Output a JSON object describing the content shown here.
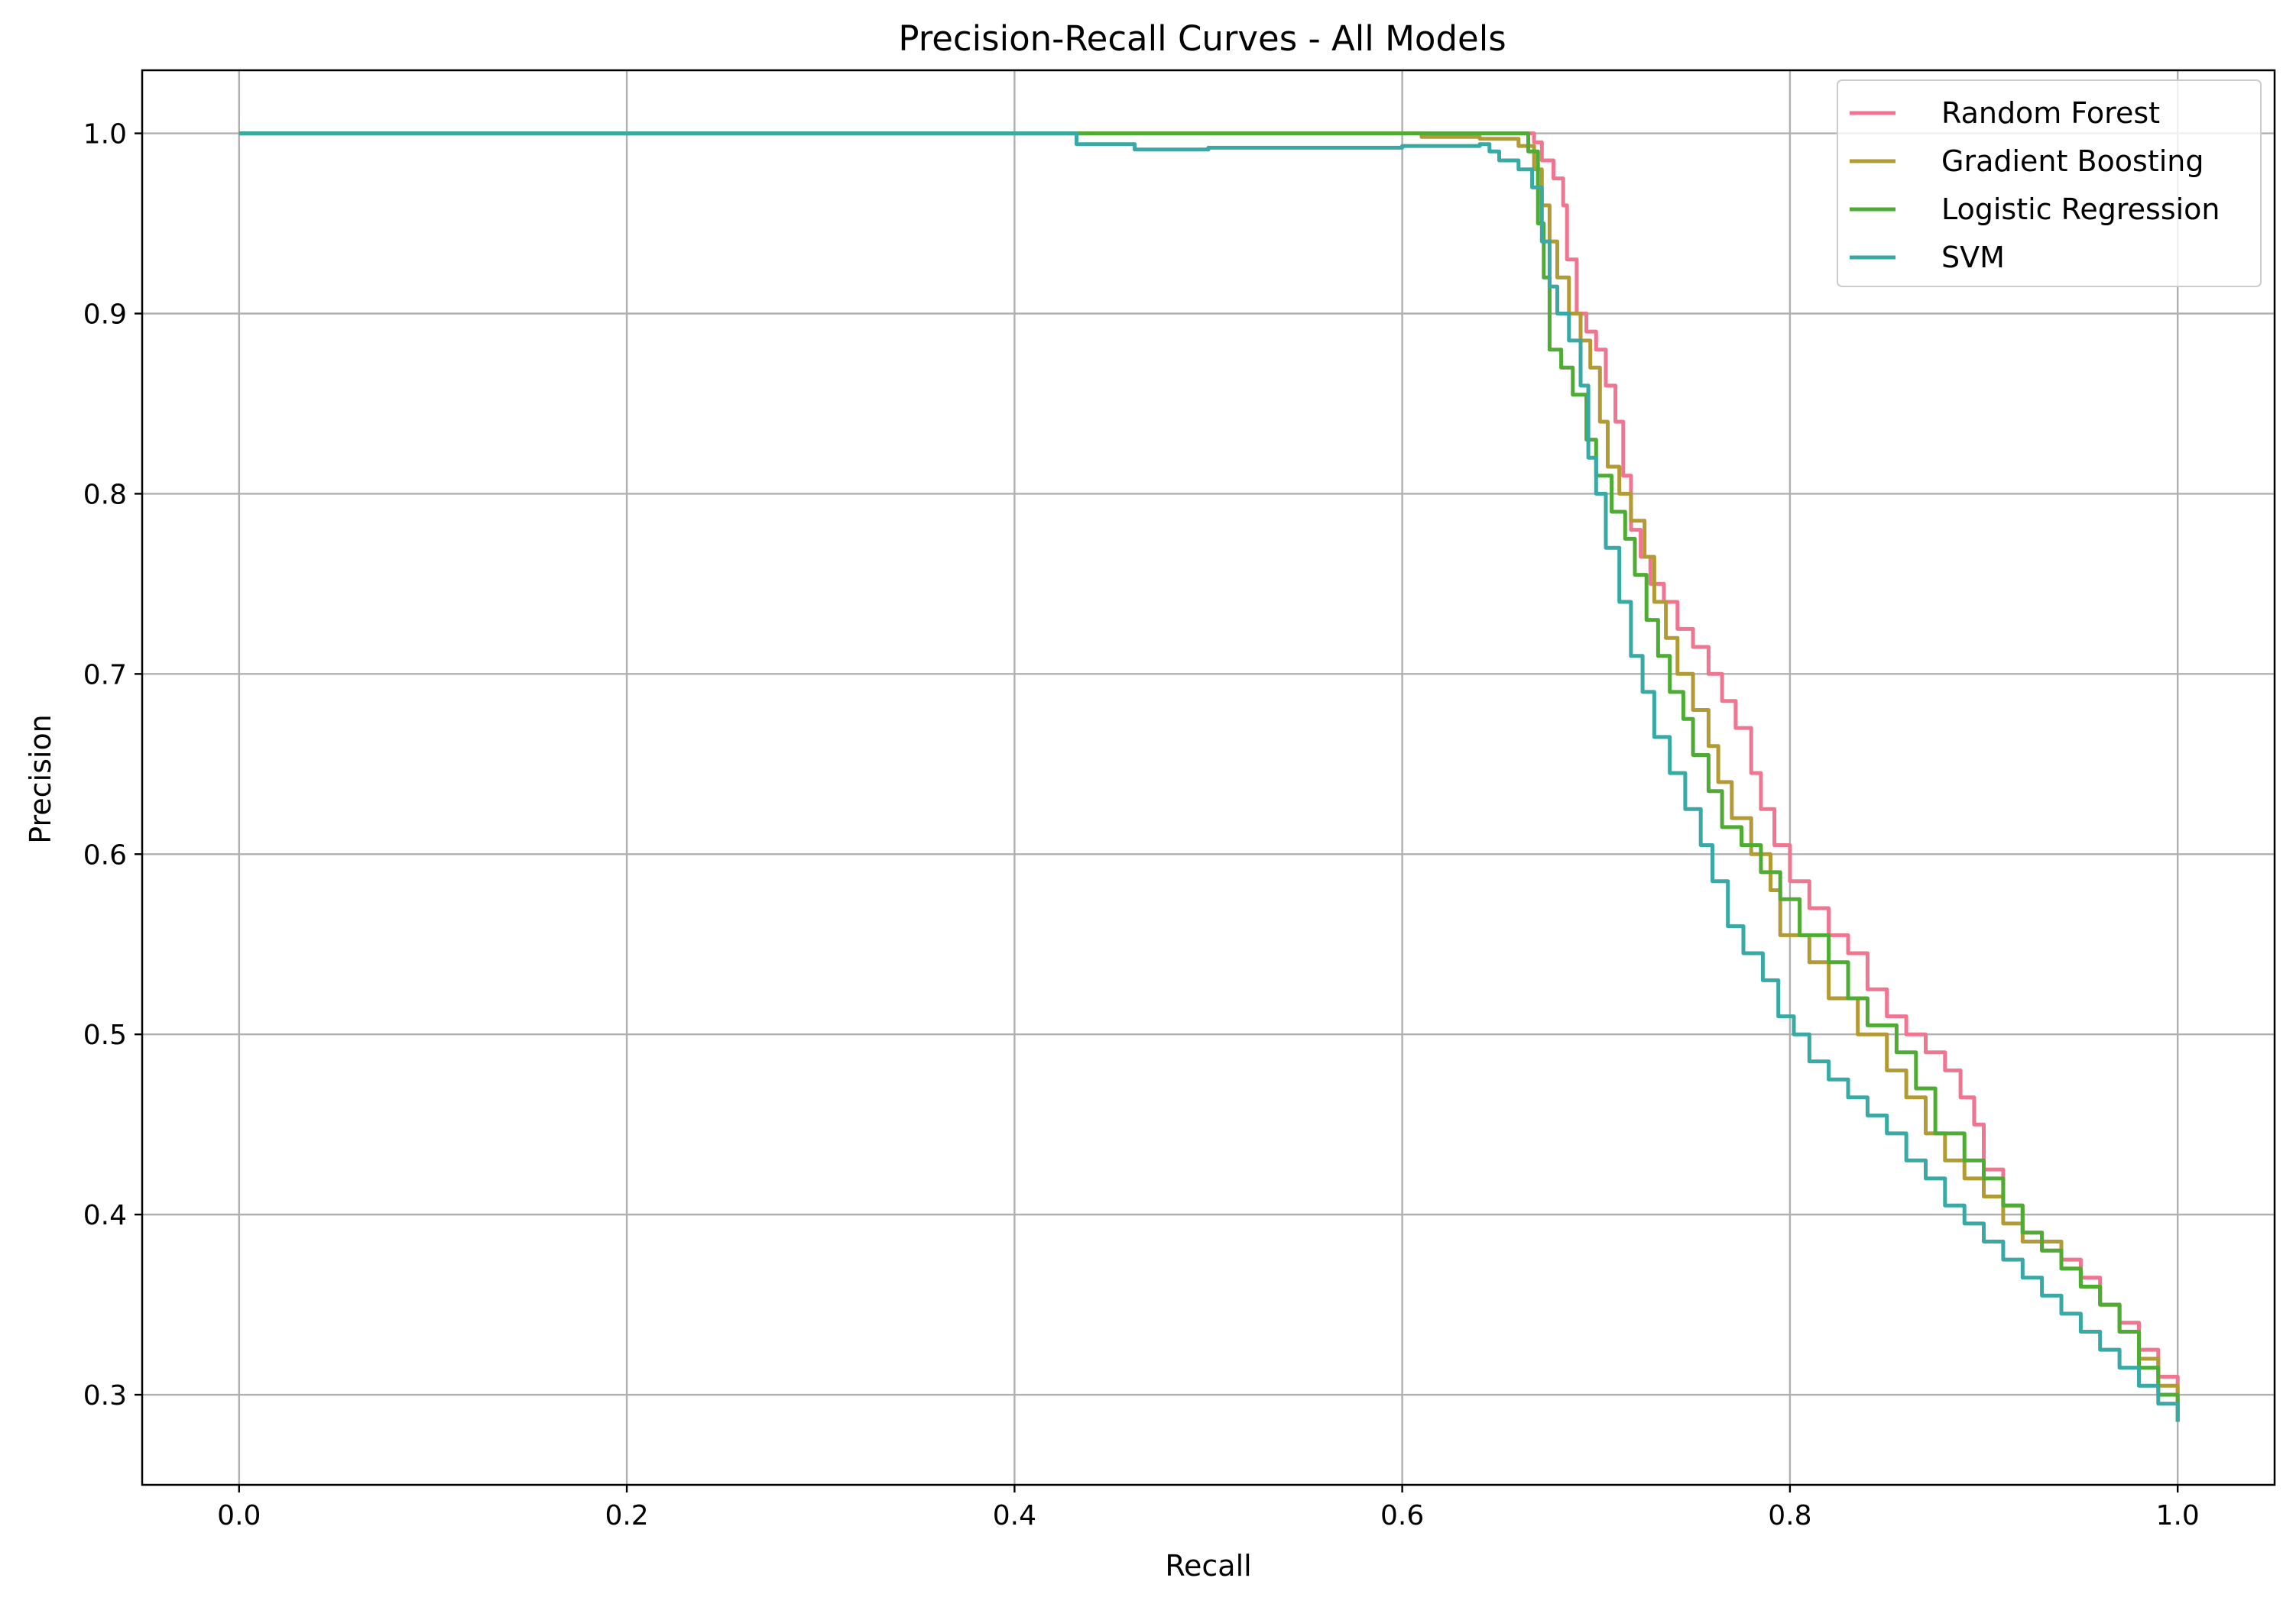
{
  "chart_data": {
    "type": "line",
    "title": "Precision-Recall Curves - All Models",
    "xlabel": "Recall",
    "ylabel": "Precision",
    "xlim": [
      -0.05,
      1.05
    ],
    "ylim": [
      0.25,
      1.035
    ],
    "xticks": [
      "0.0",
      "0.2",
      "0.4",
      "0.6",
      "0.8",
      "1.0"
    ],
    "yticks": [
      "0.3",
      "0.4",
      "0.5",
      "0.6",
      "0.7",
      "0.8",
      "0.9",
      "1.0"
    ],
    "grid": true,
    "legend_position": "top-right",
    "series": [
      {
        "name": "Random Forest",
        "color": "#f07590",
        "points": [
          [
            0.0,
            1.0
          ],
          [
            0.64,
            1.0
          ],
          [
            0.668,
            0.995
          ],
          [
            0.672,
            0.985
          ],
          [
            0.678,
            0.975
          ],
          [
            0.683,
            0.96
          ],
          [
            0.685,
            0.93
          ],
          [
            0.69,
            0.9
          ],
          [
            0.695,
            0.89
          ],
          [
            0.7,
            0.88
          ],
          [
            0.705,
            0.86
          ],
          [
            0.71,
            0.84
          ],
          [
            0.714,
            0.81
          ],
          [
            0.718,
            0.78
          ],
          [
            0.723,
            0.765
          ],
          [
            0.728,
            0.75
          ],
          [
            0.735,
            0.74
          ],
          [
            0.742,
            0.725
          ],
          [
            0.75,
            0.715
          ],
          [
            0.758,
            0.7
          ],
          [
            0.765,
            0.685
          ],
          [
            0.772,
            0.67
          ],
          [
            0.78,
            0.645
          ],
          [
            0.785,
            0.625
          ],
          [
            0.792,
            0.605
          ],
          [
            0.8,
            0.585
          ],
          [
            0.81,
            0.57
          ],
          [
            0.82,
            0.555
          ],
          [
            0.83,
            0.545
          ],
          [
            0.84,
            0.525
          ],
          [
            0.85,
            0.51
          ],
          [
            0.86,
            0.5
          ],
          [
            0.87,
            0.49
          ],
          [
            0.88,
            0.48
          ],
          [
            0.888,
            0.465
          ],
          [
            0.895,
            0.45
          ],
          [
            0.9,
            0.425
          ],
          [
            0.91,
            0.405
          ],
          [
            0.92,
            0.39
          ],
          [
            0.93,
            0.38
          ],
          [
            0.94,
            0.375
          ],
          [
            0.95,
            0.365
          ],
          [
            0.96,
            0.35
          ],
          [
            0.97,
            0.34
          ],
          [
            0.98,
            0.325
          ],
          [
            0.99,
            0.31
          ],
          [
            1.0,
            0.285
          ]
        ]
      },
      {
        "name": "Gradient Boosting",
        "color": "#b29b34",
        "points": [
          [
            0.0,
            1.0
          ],
          [
            0.61,
            0.998
          ],
          [
            0.64,
            0.997
          ],
          [
            0.66,
            0.993
          ],
          [
            0.668,
            0.98
          ],
          [
            0.672,
            0.96
          ],
          [
            0.676,
            0.94
          ],
          [
            0.68,
            0.92
          ],
          [
            0.686,
            0.9
          ],
          [
            0.692,
            0.885
          ],
          [
            0.697,
            0.87
          ],
          [
            0.702,
            0.84
          ],
          [
            0.706,
            0.815
          ],
          [
            0.712,
            0.8
          ],
          [
            0.718,
            0.785
          ],
          [
            0.725,
            0.765
          ],
          [
            0.73,
            0.74
          ],
          [
            0.736,
            0.72
          ],
          [
            0.742,
            0.7
          ],
          [
            0.75,
            0.68
          ],
          [
            0.758,
            0.66
          ],
          [
            0.763,
            0.64
          ],
          [
            0.77,
            0.62
          ],
          [
            0.78,
            0.6
          ],
          [
            0.79,
            0.58
          ],
          [
            0.795,
            0.555
          ],
          [
            0.81,
            0.54
          ],
          [
            0.82,
            0.52
          ],
          [
            0.835,
            0.5
          ],
          [
            0.85,
            0.48
          ],
          [
            0.86,
            0.465
          ],
          [
            0.87,
            0.445
          ],
          [
            0.88,
            0.43
          ],
          [
            0.89,
            0.42
          ],
          [
            0.9,
            0.41
          ],
          [
            0.91,
            0.395
          ],
          [
            0.92,
            0.385
          ],
          [
            0.94,
            0.37
          ],
          [
            0.95,
            0.36
          ],
          [
            0.96,
            0.35
          ],
          [
            0.97,
            0.335
          ],
          [
            0.98,
            0.32
          ],
          [
            0.99,
            0.305
          ],
          [
            1.0,
            0.285
          ]
        ]
      },
      {
        "name": "Logistic Regression",
        "color": "#4eac35",
        "points": [
          [
            0.0,
            1.0
          ],
          [
            0.66,
            1.0
          ],
          [
            0.665,
            0.99
          ],
          [
            0.67,
            0.95
          ],
          [
            0.673,
            0.92
          ],
          [
            0.676,
            0.88
          ],
          [
            0.682,
            0.87
          ],
          [
            0.688,
            0.855
          ],
          [
            0.695,
            0.83
          ],
          [
            0.7,
            0.81
          ],
          [
            0.708,
            0.79
          ],
          [
            0.715,
            0.775
          ],
          [
            0.72,
            0.755
          ],
          [
            0.726,
            0.73
          ],
          [
            0.732,
            0.71
          ],
          [
            0.738,
            0.69
          ],
          [
            0.745,
            0.675
          ],
          [
            0.75,
            0.655
          ],
          [
            0.758,
            0.635
          ],
          [
            0.765,
            0.615
          ],
          [
            0.775,
            0.605
          ],
          [
            0.785,
            0.59
          ],
          [
            0.795,
            0.575
          ],
          [
            0.805,
            0.555
          ],
          [
            0.82,
            0.54
          ],
          [
            0.83,
            0.52
          ],
          [
            0.84,
            0.505
          ],
          [
            0.855,
            0.49
          ],
          [
            0.865,
            0.47
          ],
          [
            0.875,
            0.445
          ],
          [
            0.89,
            0.43
          ],
          [
            0.9,
            0.42
          ],
          [
            0.91,
            0.405
          ],
          [
            0.92,
            0.39
          ],
          [
            0.93,
            0.38
          ],
          [
            0.94,
            0.37
          ],
          [
            0.95,
            0.36
          ],
          [
            0.96,
            0.35
          ],
          [
            0.97,
            0.335
          ],
          [
            0.98,
            0.315
          ],
          [
            0.99,
            0.3
          ],
          [
            1.0,
            0.285
          ]
        ]
      },
      {
        "name": "SVM",
        "color": "#38a9a4",
        "points": [
          [
            0.0,
            1.0
          ],
          [
            0.43,
            1.0
          ],
          [
            0.432,
            0.994
          ],
          [
            0.46,
            0.994
          ],
          [
            0.462,
            0.991
          ],
          [
            0.5,
            0.992
          ],
          [
            0.6,
            0.993
          ],
          [
            0.64,
            0.994
          ],
          [
            0.645,
            0.99
          ],
          [
            0.65,
            0.985
          ],
          [
            0.66,
            0.98
          ],
          [
            0.667,
            0.97
          ],
          [
            0.672,
            0.94
          ],
          [
            0.676,
            0.915
          ],
          [
            0.68,
            0.9
          ],
          [
            0.686,
            0.885
          ],
          [
            0.692,
            0.86
          ],
          [
            0.696,
            0.82
          ],
          [
            0.7,
            0.8
          ],
          [
            0.705,
            0.77
          ],
          [
            0.712,
            0.74
          ],
          [
            0.718,
            0.71
          ],
          [
            0.724,
            0.69
          ],
          [
            0.73,
            0.665
          ],
          [
            0.738,
            0.645
          ],
          [
            0.746,
            0.625
          ],
          [
            0.754,
            0.605
          ],
          [
            0.76,
            0.585
          ],
          [
            0.768,
            0.56
          ],
          [
            0.776,
            0.545
          ],
          [
            0.786,
            0.53
          ],
          [
            0.794,
            0.51
          ],
          [
            0.802,
            0.5
          ],
          [
            0.81,
            0.485
          ],
          [
            0.82,
            0.475
          ],
          [
            0.83,
            0.465
          ],
          [
            0.84,
            0.455
          ],
          [
            0.85,
            0.445
          ],
          [
            0.86,
            0.43
          ],
          [
            0.87,
            0.42
          ],
          [
            0.88,
            0.405
          ],
          [
            0.89,
            0.395
          ],
          [
            0.9,
            0.385
          ],
          [
            0.91,
            0.375
          ],
          [
            0.92,
            0.365
          ],
          [
            0.93,
            0.355
          ],
          [
            0.94,
            0.345
          ],
          [
            0.95,
            0.335
          ],
          [
            0.96,
            0.325
          ],
          [
            0.97,
            0.315
          ],
          [
            0.98,
            0.305
          ],
          [
            0.99,
            0.295
          ],
          [
            1.0,
            0.285
          ]
        ]
      }
    ]
  }
}
